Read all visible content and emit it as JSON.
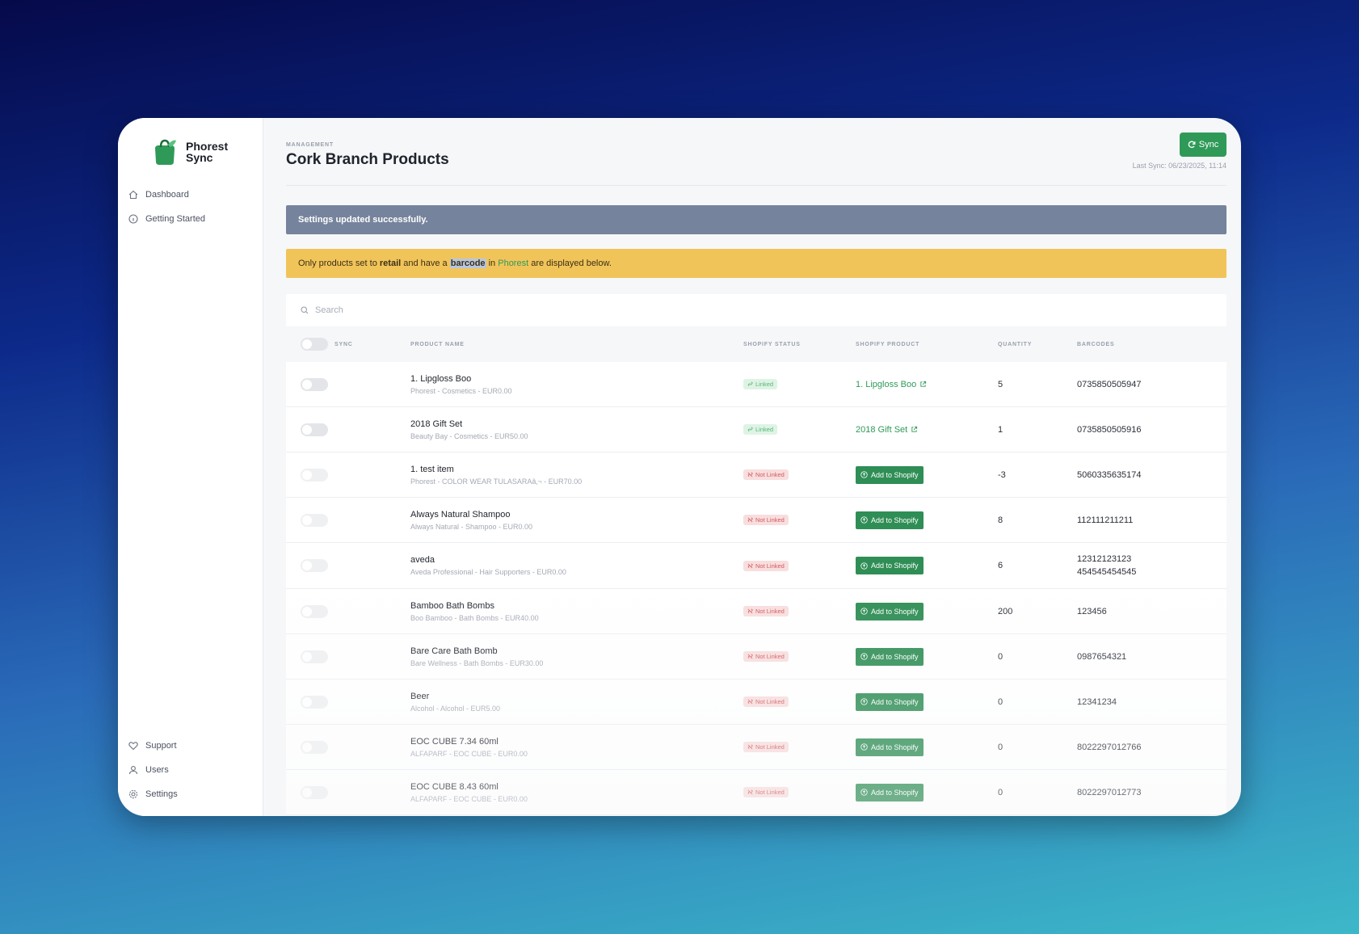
{
  "app": {
    "logo_line1": "Phorest",
    "logo_line2": "Sync"
  },
  "sidebar": {
    "top_items": [
      {
        "label": "Dashboard",
        "icon": "home-icon"
      },
      {
        "label": "Getting Started",
        "icon": "info-icon"
      }
    ],
    "bottom_items": [
      {
        "label": "Support",
        "icon": "heart-icon"
      },
      {
        "label": "Users",
        "icon": "user-icon"
      },
      {
        "label": "Settings",
        "icon": "gear-icon"
      }
    ]
  },
  "header": {
    "eyebrow": "MANAGEMENT",
    "title": "Cork Branch Products",
    "sync_label": "Sync",
    "last_sync": "Last Sync: 06/23/2025, 11:14"
  },
  "alerts": {
    "success": "Settings updated successfully.",
    "warning": {
      "p1": "Only products set to ",
      "b1": "retail",
      "p2": " and have a ",
      "b2": "barcode",
      "p3": " in ",
      "link": "Phorest",
      "p4": " are displayed below."
    }
  },
  "search": {
    "placeholder": "Search"
  },
  "table": {
    "headers": {
      "sync": "SYNC",
      "name": "PRODUCT NAME",
      "status": "SHOPIFY STATUS",
      "product": "SHOPIFY PRODUCT",
      "quantity": "QUANTITY",
      "barcodes": "BARCODES"
    },
    "linked_label": "Linked",
    "not_linked_label": "Not Linked",
    "add_label": "Add to Shopify",
    "rows": [
      {
        "name": "1. Lipgloss Boo",
        "sub": "Phorest - Cosmetics - EUR0.00",
        "status": "linked",
        "product": "1. Lipgloss Boo",
        "qty": "5",
        "barcodes": [
          "0735850505947"
        ]
      },
      {
        "name": "2018 Gift Set",
        "sub": "Beauty Bay - Cosmetics - EUR50.00",
        "status": "linked",
        "product": "2018 Gift Set",
        "qty": "1",
        "barcodes": [
          "0735850505916"
        ]
      },
      {
        "name": "1. test item",
        "sub": "Phorest - COLOR WEAR TULASARAâ‚¬ - EUR70.00",
        "status": "not_linked",
        "product": "",
        "qty": "-3",
        "barcodes": [
          "5060335635174"
        ]
      },
      {
        "name": "Always Natural Shampoo",
        "sub": "Always Natural - Shampoo - EUR0.00",
        "status": "not_linked",
        "product": "",
        "qty": "8",
        "barcodes": [
          "112111211211"
        ]
      },
      {
        "name": "aveda",
        "sub": "Aveda Professional - Hair Supporters - EUR0.00",
        "status": "not_linked",
        "product": "",
        "qty": "6",
        "barcodes": [
          "12312123123",
          "454545454545"
        ]
      },
      {
        "name": "Bamboo Bath Bombs",
        "sub": "Boo Bamboo - Bath Bombs - EUR40.00",
        "status": "not_linked",
        "product": "",
        "qty": "200",
        "barcodes": [
          "123456"
        ]
      },
      {
        "name": "Bare Care Bath Bomb",
        "sub": "Bare Wellness - Bath Bombs - EUR30.00",
        "status": "not_linked",
        "product": "",
        "qty": "0",
        "barcodes": [
          "0987654321"
        ]
      },
      {
        "name": "Beer",
        "sub": "Alcohol - Alcohol - EUR5.00",
        "status": "not_linked",
        "product": "",
        "qty": "0",
        "barcodes": [
          "12341234"
        ]
      },
      {
        "name": "EOC CUBE 7.34 60ml",
        "sub": "ALFAPARF - EOC CUBE - EUR0.00",
        "status": "not_linked",
        "product": "",
        "qty": "0",
        "barcodes": [
          "8022297012766"
        ]
      },
      {
        "name": "EOC CUBE 8.43 60ml",
        "sub": "ALFAPARF - EOC CUBE - EUR0.00",
        "status": "not_linked",
        "product": "",
        "qty": "0",
        "barcodes": [
          "8022297012773"
        ]
      }
    ]
  }
}
